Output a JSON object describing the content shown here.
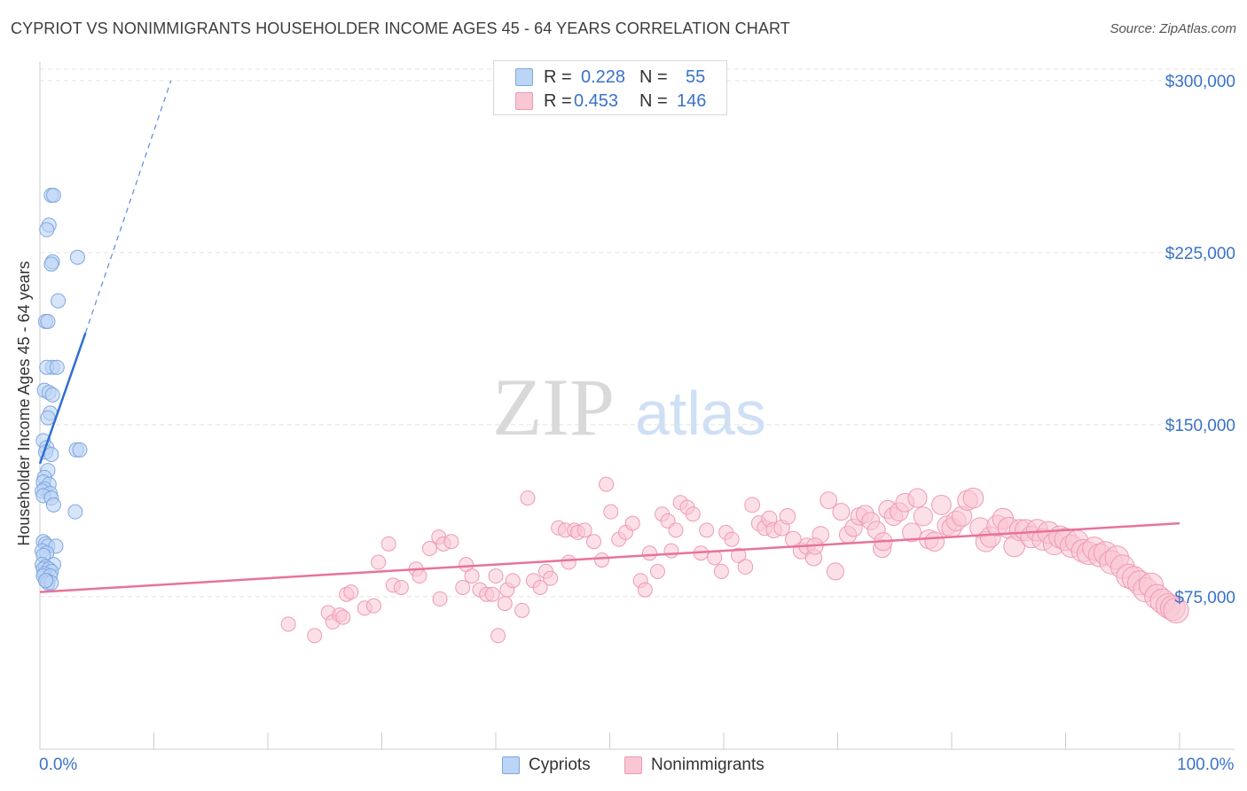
{
  "title": "CYPRIOT VS NONIMMIGRANTS HOUSEHOLDER INCOME AGES 45 - 64 YEARS CORRELATION CHART",
  "source": "Source: ZipAtlas.com",
  "watermark": {
    "zip": "ZIP",
    "atlas": "atlas"
  },
  "legend": {
    "r_label": "R =",
    "n_label": "N =",
    "rows": [
      {
        "name": "Cypriots",
        "r": "0.228",
        "n": "55"
      },
      {
        "name": "Nonimmigrants",
        "r": "0.453",
        "n": "146"
      }
    ]
  },
  "bottom_legend": [
    "Cypriots",
    "Nonimmigrants"
  ],
  "colors": {
    "blue_fill": "#bcd4f5",
    "blue_stroke": "#7ea7e0",
    "blue_line": "#2f6fd0",
    "pink_fill": "#f9c6d4",
    "pink_stroke": "#ee9ab3",
    "pink_line": "#e7739a",
    "axis_label": "#3a72c9",
    "grid": "#e3e3e3"
  },
  "chart_data": {
    "type": "scatter",
    "title": "CYPRIOT VS NONIMMIGRANTS HOUSEHOLDER INCOME AGES 45 - 64 YEARS CORRELATION CHART",
    "xlabel": "",
    "ylabel": "Householder Income Ages 45 - 64 years",
    "xlim": [
      0,
      100
    ],
    "ylim": [
      15000,
      305000
    ],
    "x_tick_labels": [
      "0.0%",
      "100.0%"
    ],
    "y_ticks": [
      75000,
      150000,
      225000,
      300000
    ],
    "y_tick_labels": [
      "$75,000",
      "$150,000",
      "$225,000",
      "$300,000"
    ],
    "grid": true,
    "legend_position": "top-center",
    "series": [
      {
        "name": "Cypriots",
        "r": 0.228,
        "n": 55,
        "trend": {
          "x0": 0,
          "y0": 133000,
          "x1": 4,
          "y1": 190000,
          "dashed_to_x": 11.5,
          "dashed_to_y": 300000
        },
        "points": [
          [
            1.0,
            250000
          ],
          [
            1.2,
            250000
          ],
          [
            0.8,
            237000
          ],
          [
            0.6,
            235000
          ],
          [
            1.1,
            221000
          ],
          [
            1.0,
            220000
          ],
          [
            3.3,
            223000
          ],
          [
            1.6,
            204000
          ],
          [
            0.5,
            195000
          ],
          [
            0.7,
            195000
          ],
          [
            1.1,
            175000
          ],
          [
            0.6,
            175000
          ],
          [
            1.5,
            175000
          ],
          [
            0.4,
            165000
          ],
          [
            0.8,
            164000
          ],
          [
            1.1,
            163000
          ],
          [
            0.9,
            155000
          ],
          [
            0.7,
            153000
          ],
          [
            0.3,
            143000
          ],
          [
            0.6,
            140000
          ],
          [
            0.5,
            138000
          ],
          [
            1.0,
            137000
          ],
          [
            3.2,
            139000
          ],
          [
            3.5,
            139000
          ],
          [
            0.7,
            130000
          ],
          [
            0.4,
            127000
          ],
          [
            0.3,
            125000
          ],
          [
            0.8,
            124000
          ],
          [
            0.4,
            122000
          ],
          [
            0.2,
            121000
          ],
          [
            0.9,
            120000
          ],
          [
            0.3,
            119000
          ],
          [
            1.0,
            118000
          ],
          [
            1.2,
            115000
          ],
          [
            3.1,
            112000
          ],
          [
            0.3,
            99000
          ],
          [
            0.5,
            98000
          ],
          [
            0.7,
            97000
          ],
          [
            1.4,
            97000
          ],
          [
            0.2,
            95000
          ],
          [
            0.6,
            94000
          ],
          [
            0.3,
            93000
          ],
          [
            1.2,
            89000
          ],
          [
            0.2,
            89000
          ],
          [
            0.5,
            88000
          ],
          [
            0.3,
            87000
          ],
          [
            0.8,
            87000
          ],
          [
            1.0,
            86000
          ],
          [
            0.4,
            85000
          ],
          [
            0.3,
            84000
          ],
          [
            0.9,
            84000
          ],
          [
            0.6,
            82000
          ],
          [
            0.7,
            81000
          ],
          [
            1.0,
            81000
          ],
          [
            0.5,
            82000
          ]
        ]
      },
      {
        "name": "Nonimmigrants",
        "r": 0.453,
        "n": 146,
        "trend": {
          "x0": 0,
          "y0": 77000,
          "x1": 100,
          "y1": 107000
        },
        "points": [
          [
            21.8,
            63000
          ],
          [
            24.1,
            58000
          ],
          [
            25.3,
            68000
          ],
          [
            25.7,
            64000
          ],
          [
            26.3,
            67000
          ],
          [
            26.6,
            66000
          ],
          [
            26.9,
            76000
          ],
          [
            27.3,
            77000
          ],
          [
            28.5,
            70000
          ],
          [
            29.3,
            71000
          ],
          [
            29.7,
            90000
          ],
          [
            30.6,
            98000
          ],
          [
            31.0,
            80000
          ],
          [
            31.7,
            79000
          ],
          [
            33.0,
            87000
          ],
          [
            33.3,
            84000
          ],
          [
            34.2,
            96000
          ],
          [
            35.0,
            101000
          ],
          [
            35.1,
            74000
          ],
          [
            35.4,
            98000
          ],
          [
            36.1,
            99000
          ],
          [
            37.1,
            79000
          ],
          [
            37.4,
            89000
          ],
          [
            37.9,
            84000
          ],
          [
            38.6,
            78000
          ],
          [
            39.2,
            76000
          ],
          [
            39.7,
            76000
          ],
          [
            40.0,
            84000
          ],
          [
            40.2,
            58000
          ],
          [
            40.8,
            72000
          ],
          [
            41.0,
            78000
          ],
          [
            41.5,
            82000
          ],
          [
            42.3,
            69000
          ],
          [
            42.8,
            118000
          ],
          [
            43.3,
            82000
          ],
          [
            43.9,
            79000
          ],
          [
            44.4,
            86000
          ],
          [
            44.8,
            83000
          ],
          [
            45.5,
            105000
          ],
          [
            46.1,
            104000
          ],
          [
            46.4,
            90000
          ],
          [
            46.9,
            104000
          ],
          [
            47.2,
            103000
          ],
          [
            47.8,
            104000
          ],
          [
            48.6,
            99000
          ],
          [
            49.3,
            91000
          ],
          [
            49.7,
            124000
          ],
          [
            50.1,
            112000
          ],
          [
            50.8,
            100000
          ],
          [
            51.4,
            103000
          ],
          [
            52.0,
            107000
          ],
          [
            52.7,
            82000
          ],
          [
            53.1,
            78000
          ],
          [
            53.5,
            94000
          ],
          [
            54.2,
            86000
          ],
          [
            54.6,
            111000
          ],
          [
            55.1,
            108000
          ],
          [
            55.4,
            95000
          ],
          [
            55.8,
            104000
          ],
          [
            56.2,
            116000
          ],
          [
            56.8,
            114000
          ],
          [
            57.3,
            111000
          ],
          [
            58.0,
            94000
          ],
          [
            58.5,
            104000
          ],
          [
            59.2,
            92000
          ],
          [
            59.8,
            86000
          ],
          [
            60.2,
            103000
          ],
          [
            60.7,
            100000
          ],
          [
            61.3,
            93000
          ],
          [
            61.9,
            88000
          ],
          [
            62.5,
            115000
          ],
          [
            63.1,
            107000
          ],
          [
            63.6,
            105000
          ],
          [
            64.0,
            109000
          ],
          [
            64.4,
            104000
          ],
          [
            65.1,
            105000
          ],
          [
            65.6,
            110000
          ],
          [
            66.1,
            100000
          ],
          [
            66.8,
            95000
          ],
          [
            67.3,
            97000
          ],
          [
            67.9,
            92000
          ],
          [
            68.5,
            102000
          ],
          [
            69.2,
            117000
          ],
          [
            69.8,
            86000
          ],
          [
            70.3,
            112000
          ],
          [
            70.9,
            102000
          ],
          [
            71.4,
            105000
          ],
          [
            71.9,
            110000
          ],
          [
            72.4,
            111000
          ],
          [
            72.9,
            108000
          ],
          [
            73.4,
            104000
          ],
          [
            73.9,
            96000
          ],
          [
            74.4,
            113000
          ],
          [
            74.9,
            110000
          ],
          [
            75.4,
            112000
          ],
          [
            75.9,
            116000
          ],
          [
            76.5,
            103000
          ],
          [
            77.0,
            118000
          ],
          [
            77.5,
            110000
          ],
          [
            78.0,
            100000
          ],
          [
            78.5,
            99000
          ],
          [
            79.1,
            115000
          ],
          [
            79.6,
            106000
          ],
          [
            80.0,
            105000
          ],
          [
            80.4,
            108000
          ],
          [
            80.9,
            110000
          ],
          [
            81.4,
            117000
          ],
          [
            81.9,
            118000
          ],
          [
            82.5,
            105000
          ],
          [
            83.0,
            99000
          ],
          [
            83.4,
            101000
          ],
          [
            84.0,
            106000
          ],
          [
            84.5,
            109000
          ],
          [
            85.0,
            105000
          ],
          [
            85.5,
            97000
          ],
          [
            86.0,
            104000
          ],
          [
            86.5,
            104000
          ],
          [
            87.0,
            101000
          ],
          [
            87.5,
            104000
          ],
          [
            88.0,
            100000
          ],
          [
            88.5,
            103000
          ],
          [
            89.0,
            98000
          ],
          [
            89.5,
            101000
          ],
          [
            90.0,
            100000
          ],
          [
            90.5,
            97000
          ],
          [
            91.0,
            99000
          ],
          [
            91.5,
            95000
          ],
          [
            92.0,
            94000
          ],
          [
            92.5,
            96000
          ],
          [
            93.0,
            93000
          ],
          [
            93.5,
            94000
          ],
          [
            94.0,
            90000
          ],
          [
            94.5,
            92000
          ],
          [
            95.0,
            88000
          ],
          [
            95.5,
            84000
          ],
          [
            96.0,
            83000
          ],
          [
            96.5,
            81000
          ],
          [
            97.0,
            78000
          ],
          [
            97.5,
            80000
          ],
          [
            98.0,
            75000
          ],
          [
            98.5,
            73000
          ],
          [
            99.0,
            71000
          ],
          [
            99.4,
            70000
          ],
          [
            99.7,
            69000
          ],
          [
            68.0,
            97000
          ],
          [
            74.0,
            99000
          ]
        ]
      }
    ]
  }
}
